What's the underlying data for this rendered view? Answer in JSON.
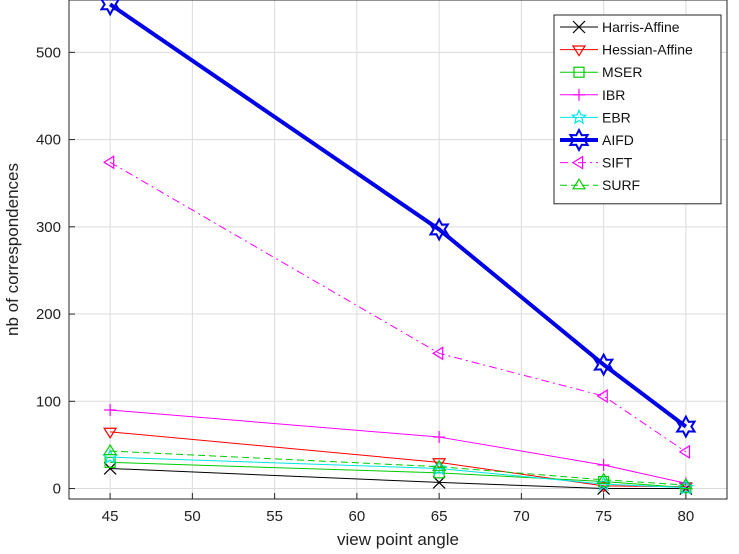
{
  "chart_data": {
    "type": "line",
    "title": "",
    "xlabel": "view point angle",
    "ylabel": "nb of correspondences",
    "xlim": [
      42.5,
      82.5
    ],
    "ylim": [
      -12,
      560
    ],
    "xticks": [
      45,
      50,
      55,
      60,
      65,
      70,
      75,
      80
    ],
    "yticks": [
      0,
      100,
      200,
      300,
      400,
      500
    ],
    "grid": true,
    "legend_position": "top-right",
    "x": [
      45,
      65,
      75,
      80
    ],
    "series": [
      {
        "name": "Harris-Affine",
        "values": [
          23,
          7,
          0,
          0
        ],
        "color": "#000000",
        "marker": "x",
        "dash": "solid",
        "width": 1
      },
      {
        "name": "Hessian-Affine",
        "values": [
          65,
          30,
          3,
          2
        ],
        "color": "#ff0000",
        "marker": "triangle-down",
        "dash": "solid",
        "width": 1
      },
      {
        "name": "MSER",
        "values": [
          30,
          18,
          8,
          1
        ],
        "color": "#00cc00",
        "marker": "square",
        "dash": "solid",
        "width": 1
      },
      {
        "name": "IBR",
        "values": [
          90,
          59,
          27,
          6
        ],
        "color": "#ff00ff",
        "marker": "plus",
        "dash": "solid",
        "width": 1
      },
      {
        "name": "EBR",
        "values": [
          36,
          23,
          5,
          1
        ],
        "color": "#00e5e5",
        "marker": "star5",
        "dash": "solid",
        "width": 1
      },
      {
        "name": "AIFD",
        "values": [
          555,
          297,
          142,
          71
        ],
        "color": "#0000e6",
        "marker": "star6",
        "dash": "solid",
        "width": 4
      },
      {
        "name": "SIFT",
        "values": [
          374,
          155,
          106,
          42
        ],
        "color": "#ff00ff",
        "marker": "triangle-left",
        "dash": "dashdot",
        "width": 1
      },
      {
        "name": "SURF",
        "values": [
          43,
          25,
          10,
          4
        ],
        "color": "#00cc00",
        "marker": "triangle-up",
        "dash": "dashed",
        "width": 1
      }
    ]
  }
}
